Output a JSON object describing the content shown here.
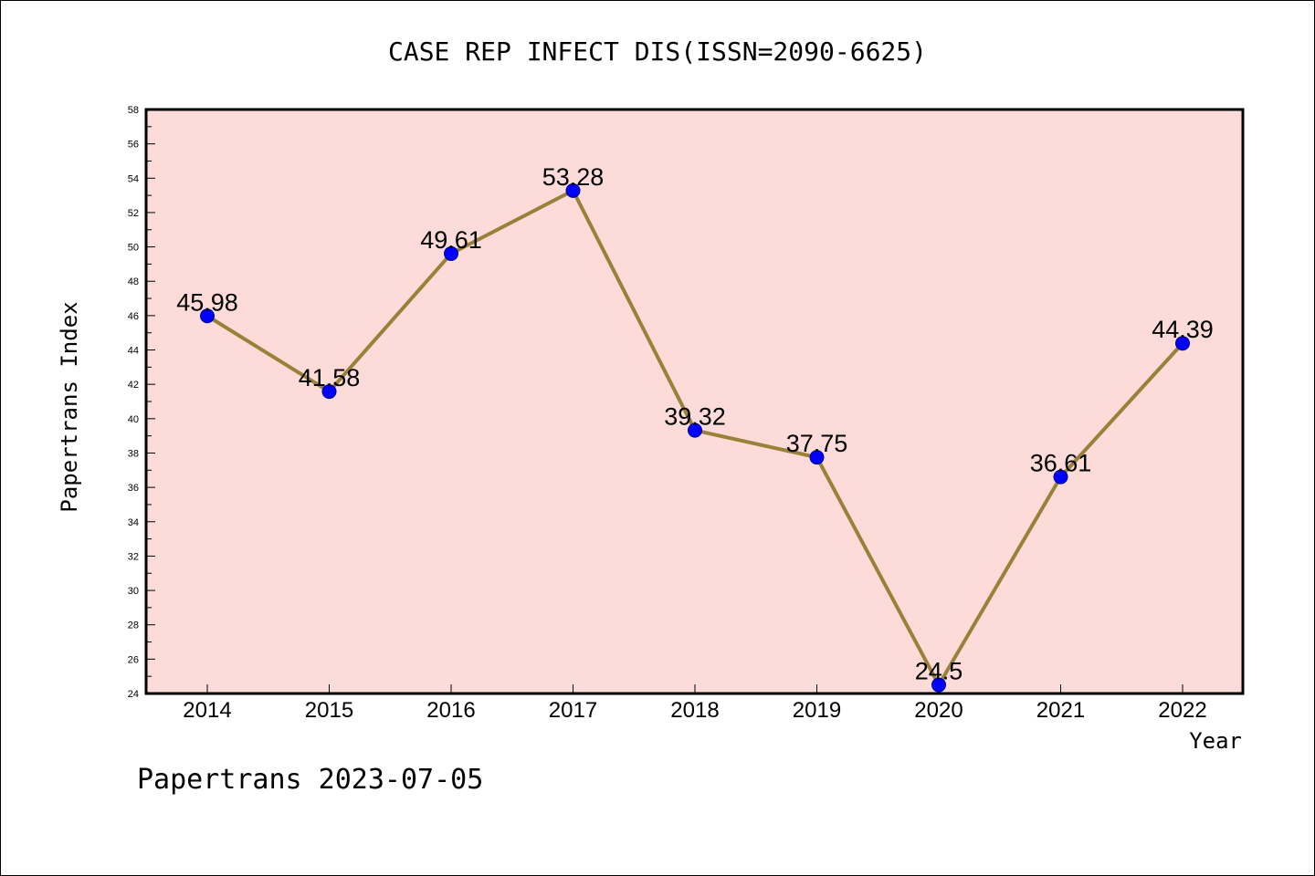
{
  "chart_data": {
    "type": "line",
    "title": "CASE REP INFECT DIS(ISSN=2090-6625)",
    "xlabel": "Year",
    "ylabel": "Papertrans Index",
    "categories": [
      "2014",
      "2015",
      "2016",
      "2017",
      "2018",
      "2019",
      "2020",
      "2021",
      "2022"
    ],
    "series": [
      {
        "name": "Papertrans Index",
        "values": [
          45.98,
          41.58,
          49.61,
          53.28,
          39.32,
          37.75,
          24.5,
          36.61,
          44.39
        ],
        "labels": [
          "45.98",
          "41.58",
          "49.61",
          "53.28",
          "39.32",
          "37.75",
          "24.5",
          "36.61",
          "44.39"
        ]
      }
    ],
    "ylim": [
      24,
      58
    ],
    "yticks": [
      "24",
      "26",
      "28",
      "30",
      "32",
      "34",
      "36",
      "38",
      "40",
      "42",
      "44",
      "46",
      "48",
      "50",
      "52",
      "54",
      "56",
      "58"
    ],
    "grid": false,
    "colors": {
      "plot_background": "#fddbd8",
      "line": "#9a8038",
      "marker": "#0000ff",
      "axis": "#000000"
    }
  },
  "footer": {
    "watermark": "Papertrans 2023-07-05"
  }
}
